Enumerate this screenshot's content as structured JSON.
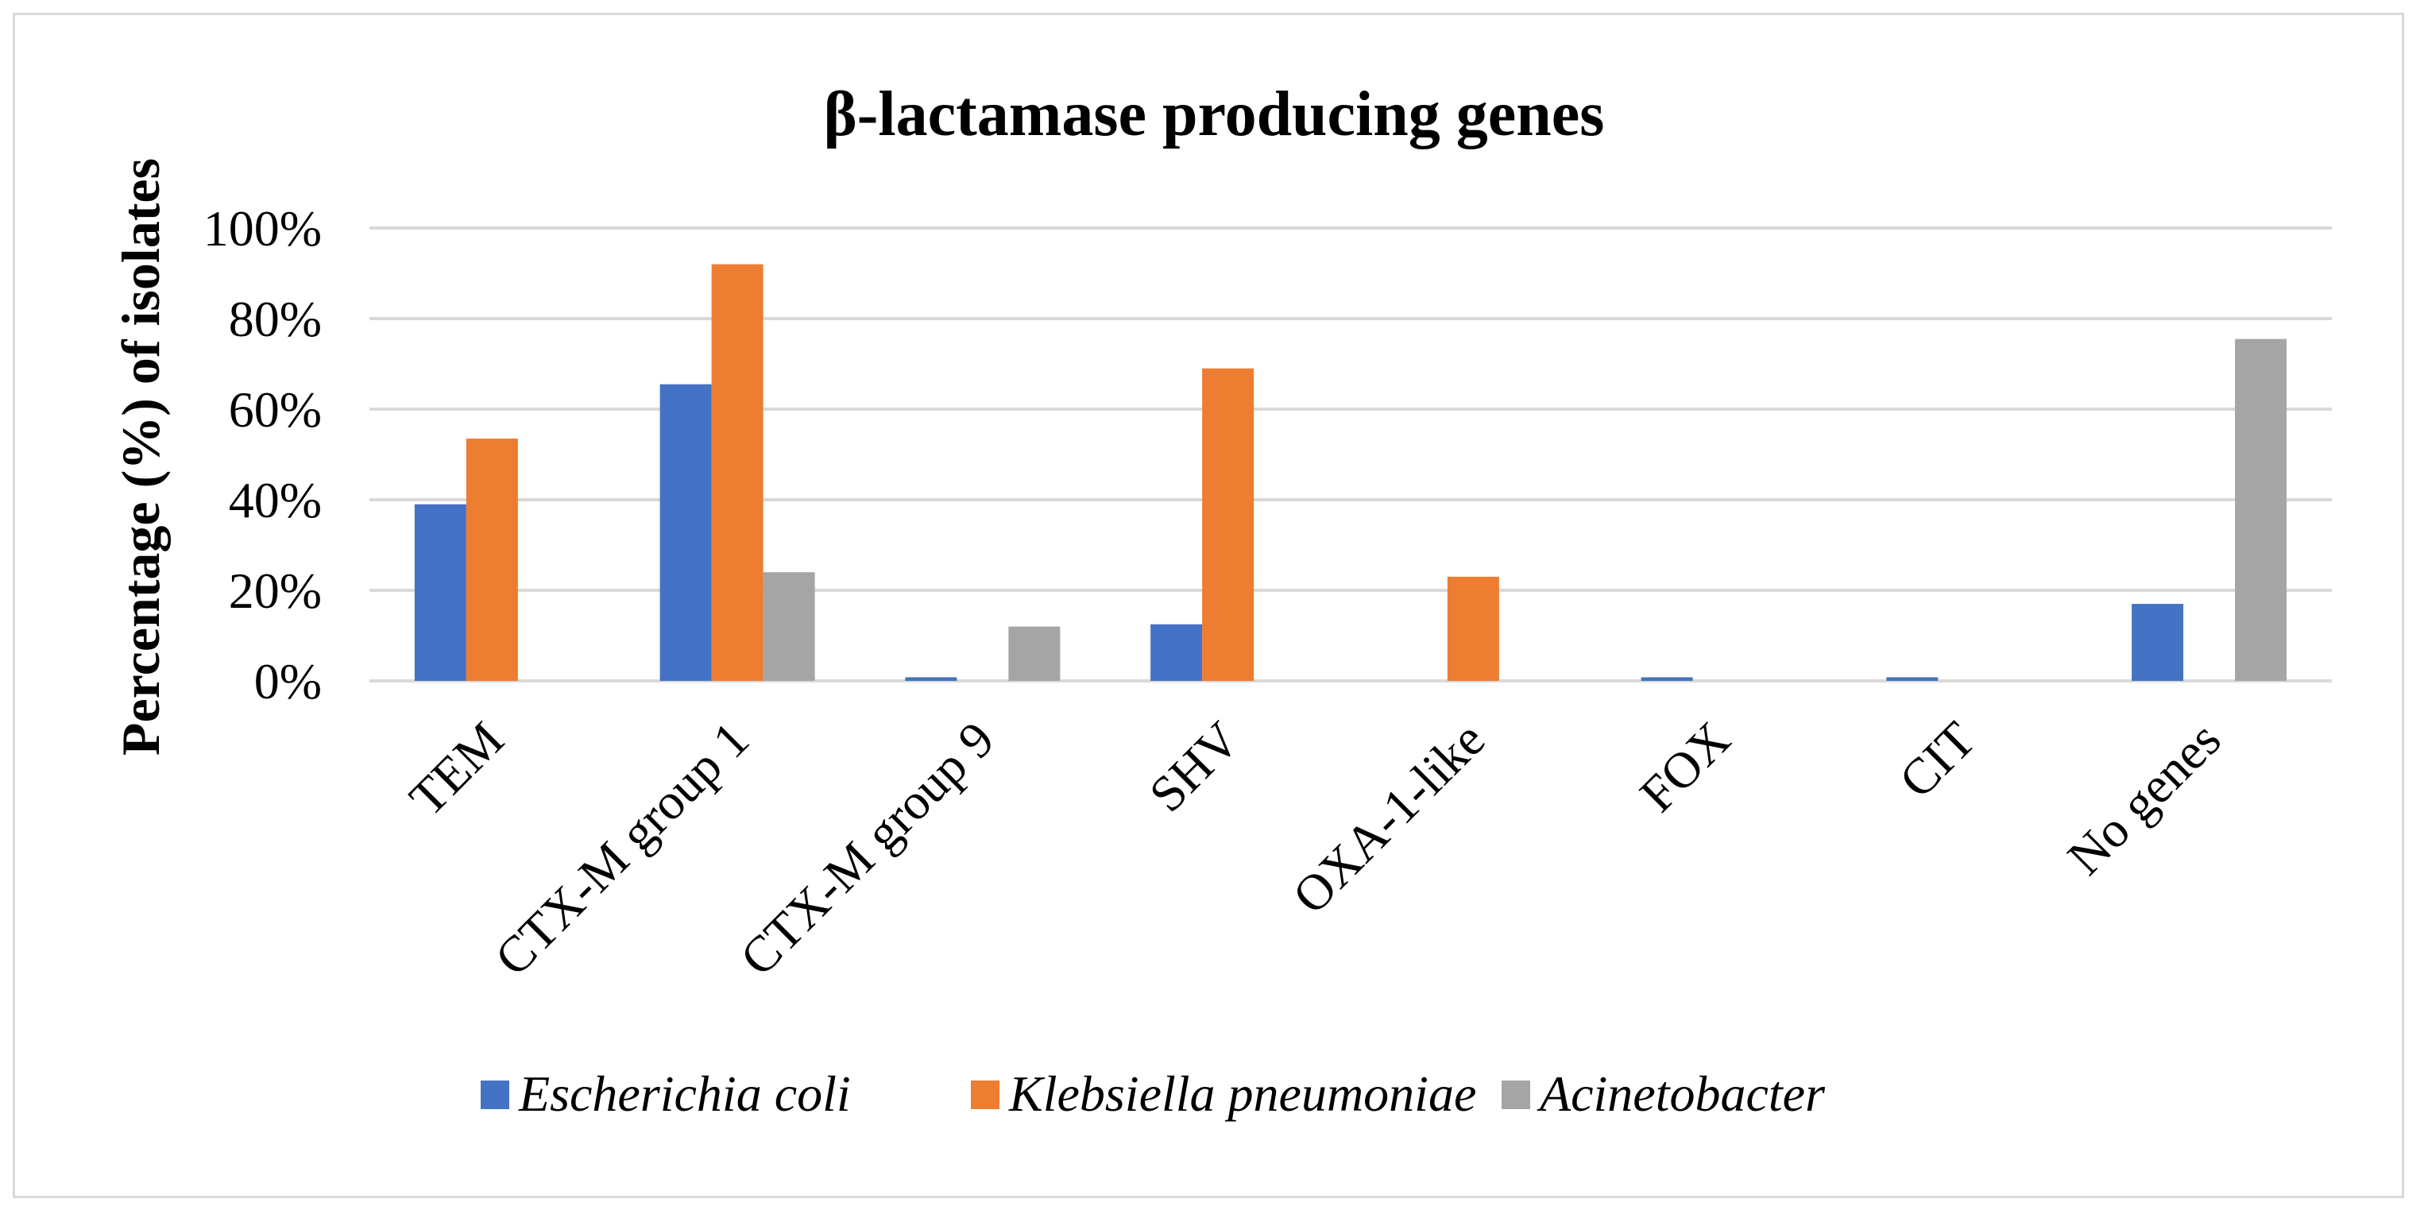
{
  "chart_data": {
    "type": "bar",
    "title": "β-lactamase producing genes",
    "xlabel": "",
    "ylabel": "Percentage (%) of isolates",
    "ylim": [
      0,
      100
    ],
    "yticks": [
      "0%",
      "20%",
      "40%",
      "60%",
      "80%",
      "100%"
    ],
    "ytick_values": [
      0,
      20,
      40,
      60,
      80,
      100
    ],
    "grid": true,
    "legend_position": "bottom",
    "categories": [
      "TEM",
      "CTX-M group 1",
      "CTX-M group 9",
      "SHV",
      "OXA-1-like",
      "FOX",
      "CIT",
      "No genes"
    ],
    "series": [
      {
        "name": "Escherichia coli",
        "color": "#4472C4",
        "values": [
          39,
          65.5,
          0.8,
          12.5,
          0,
          0.8,
          0.8,
          17
        ]
      },
      {
        "name": "Klebsiella pneumoniae",
        "color": "#ED7D31",
        "values": [
          53.5,
          92,
          0,
          69,
          23,
          0,
          0,
          0
        ]
      },
      {
        "name": "Acinetobacter",
        "color": "#A5A5A5",
        "values": [
          0,
          24,
          12,
          0,
          0,
          0,
          0,
          75.5
        ]
      }
    ]
  }
}
